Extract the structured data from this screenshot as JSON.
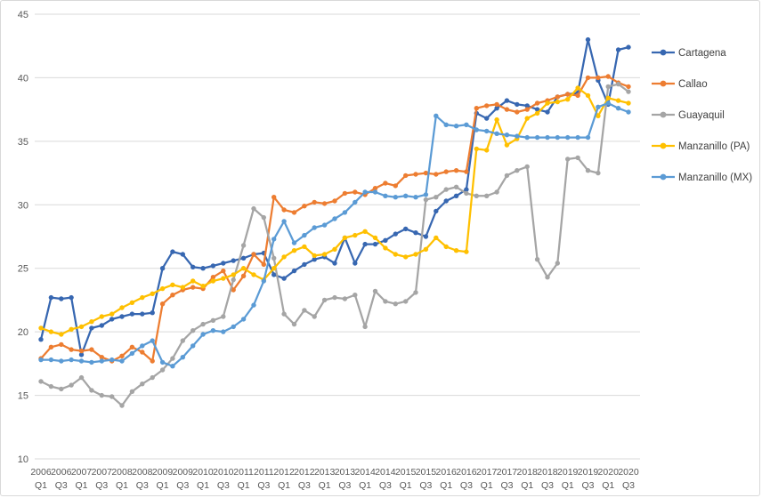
{
  "chart_data": {
    "type": "line",
    "title": "",
    "legend_position": "right",
    "grid": true,
    "ylim": [
      10,
      45
    ],
    "y_ticks": [
      10,
      15,
      20,
      25,
      30,
      35,
      40,
      45
    ],
    "x_tick_every": 2,
    "colors": {
      "grid": "#d9d9d9",
      "axis_text": "#595959",
      "legend_text": "#404040",
      "background": "#ffffff"
    },
    "x_categories": [
      "2006 Q1",
      "2006 Q2",
      "2006 Q3",
      "2006 Q4",
      "2007 Q1",
      "2007 Q2",
      "2007 Q3",
      "2007 Q4",
      "2008 Q1",
      "2008 Q2",
      "2008 Q3",
      "2008 Q4",
      "2009 Q1",
      "2009 Q2",
      "2009 Q3",
      "2009 Q4",
      "2010 Q1",
      "2010 Q2",
      "2010 Q3",
      "2010 Q4",
      "2011 Q1",
      "2011 Q2",
      "2011 Q3",
      "2011 Q4",
      "2012 Q1",
      "2012 Q2",
      "2012 Q3",
      "2012 Q4",
      "2013 Q1",
      "2013 Q2",
      "2013 Q3",
      "2013 Q4",
      "2014 Q1",
      "2014 Q2",
      "2014 Q3",
      "2014 Q4",
      "2015 Q1",
      "2015 Q2",
      "2015 Q3",
      "2015 Q4",
      "2016 Q1",
      "2016 Q2",
      "2016 Q3",
      "2016 Q4",
      "2017 Q1",
      "2017 Q2",
      "2017 Q3",
      "2017 Q4",
      "2018 Q1",
      "2018 Q2",
      "2018 Q3",
      "2018 Q4",
      "2019 Q1",
      "2019 Q2",
      "2019 Q3",
      "2019 Q4",
      "2020 Q1",
      "2020 Q2",
      "2020 Q3"
    ],
    "series": [
      {
        "name": "Cartagena",
        "color": "#3767b1",
        "values": [
          19.4,
          22.7,
          22.6,
          22.7,
          18.2,
          20.3,
          20.5,
          21.0,
          21.2,
          21.4,
          21.4,
          21.5,
          25.0,
          26.3,
          26.1,
          25.1,
          25.0,
          25.2,
          25.4,
          25.6,
          25.8,
          26.1,
          26.2,
          24.5,
          24.2,
          24.8,
          25.3,
          25.7,
          25.9,
          25.4,
          27.4,
          25.4,
          26.9,
          26.9,
          27.2,
          27.7,
          28.1,
          27.8,
          27.5,
          29.5,
          30.3,
          30.7,
          31.2,
          37.2,
          36.8,
          37.6,
          38.2,
          37.9,
          37.8,
          37.5,
          37.3,
          38.5,
          38.7,
          38.8,
          43.0,
          39.8,
          37.9,
          42.2,
          42.4
        ]
      },
      {
        "name": "Callao",
        "color": "#ed7d31",
        "values": [
          17.9,
          18.8,
          19.0,
          18.6,
          18.5,
          18.6,
          18.0,
          17.7,
          18.1,
          18.8,
          18.4,
          17.7,
          22.2,
          22.9,
          23.3,
          23.5,
          23.4,
          24.3,
          24.8,
          23.3,
          24.4,
          26.1,
          25.3,
          30.6,
          29.6,
          29.4,
          29.9,
          30.2,
          30.1,
          30.3,
          30.9,
          31.0,
          30.8,
          31.3,
          31.7,
          31.5,
          32.3,
          32.4,
          32.5,
          32.4,
          32.6,
          32.7,
          32.6,
          37.6,
          37.8,
          37.9,
          37.5,
          37.3,
          37.5,
          38.0,
          38.2,
          38.5,
          38.7,
          38.6,
          40.0,
          40.0,
          40.1,
          39.6,
          39.3
        ]
      },
      {
        "name": "Guayaquil",
        "color": "#a5a5a5",
        "values": [
          16.1,
          15.7,
          15.5,
          15.8,
          16.4,
          15.4,
          15.0,
          14.9,
          14.2,
          15.3,
          15.9,
          16.4,
          17.0,
          17.9,
          19.3,
          20.1,
          20.6,
          20.9,
          21.2,
          24.1,
          26.8,
          29.7,
          29.0,
          25.8,
          21.4,
          20.6,
          21.7,
          21.2,
          22.5,
          22.7,
          22.6,
          22.9,
          20.4,
          23.2,
          22.4,
          22.2,
          22.4,
          23.1,
          30.4,
          30.6,
          31.2,
          31.4,
          30.9,
          30.7,
          30.7,
          31.0,
          32.3,
          32.7,
          33.0,
          25.7,
          24.3,
          25.4,
          33.6,
          33.7,
          32.7,
          32.5,
          39.3,
          39.5,
          38.9
        ]
      },
      {
        "name": "Manzanillo (PA)",
        "color": "#ffc000",
        "values": [
          20.3,
          20.0,
          19.8,
          20.2,
          20.4,
          20.8,
          21.2,
          21.4,
          21.9,
          22.3,
          22.7,
          23.0,
          23.4,
          23.7,
          23.5,
          24.0,
          23.6,
          24.0,
          24.2,
          24.5,
          25.0,
          24.5,
          24.1,
          25.0,
          25.9,
          26.4,
          26.7,
          26.0,
          26.1,
          26.5,
          27.4,
          27.6,
          27.9,
          27.4,
          26.6,
          26.1,
          25.9,
          26.1,
          26.5,
          27.4,
          26.7,
          26.4,
          26.3,
          34.4,
          34.3,
          36.7,
          34.7,
          35.2,
          36.8,
          37.2,
          38.0,
          38.1,
          38.3,
          39.2,
          38.6,
          37.0,
          38.4,
          38.2,
          38.0
        ]
      },
      {
        "name": "Manzanillo (MX)",
        "color": "#5b9bd5",
        "values": [
          17.8,
          17.8,
          17.7,
          17.8,
          17.7,
          17.6,
          17.7,
          17.8,
          17.7,
          18.3,
          18.9,
          19.3,
          17.6,
          17.3,
          18.0,
          18.9,
          19.8,
          20.1,
          20.0,
          20.4,
          21.0,
          22.1,
          24.0,
          27.3,
          28.7,
          27.0,
          27.6,
          28.2,
          28.4,
          28.9,
          29.4,
          30.2,
          31.0,
          31.0,
          30.7,
          30.6,
          30.7,
          30.6,
          30.8,
          37.0,
          36.3,
          36.2,
          36.3,
          35.9,
          35.8,
          35.6,
          35.5,
          35.4,
          35.3,
          35.3,
          35.3,
          35.3,
          35.3,
          35.3,
          35.3,
          37.7,
          38.0,
          37.6,
          37.3
        ]
      }
    ]
  }
}
